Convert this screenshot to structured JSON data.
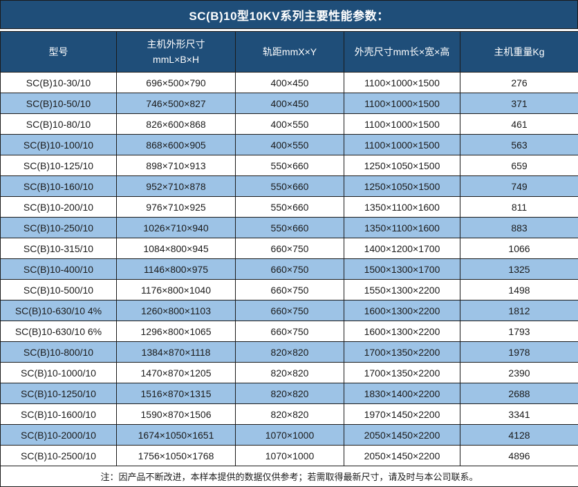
{
  "title": "SC(B)10型10KV系列主要性能参数：",
  "colors": {
    "title_bg": "#1F4E79",
    "header_bg": "#1F4E79",
    "row_alt_bg": "#9DC3E6",
    "row_bg": "#FFFFFF",
    "border": "#1A1A1A",
    "header_text": "#FFFFFF",
    "body_text": "#1A1A1A"
  },
  "table": {
    "headers": [
      "型号",
      "主机外形尺寸\nmmL×B×H",
      "轨距mmX×Y",
      "外壳尺寸mm长×宽×高",
      "主机重量Kg"
    ],
    "rows": [
      [
        "SC(B)10-30/10",
        "696×500×790",
        "400×450",
        "1100×1000×1500",
        "276"
      ],
      [
        "SC(B)10-50/10",
        "746×500×827",
        "400×450",
        "1100×1000×1500",
        "371"
      ],
      [
        "SC(B)10-80/10",
        "826×600×868",
        "400×550",
        "1100×1000×1500",
        "461"
      ],
      [
        "SC(B)10-100/10",
        "868×600×905",
        "400×550",
        "1100×1000×1500",
        "563"
      ],
      [
        "SC(B)10-125/10",
        "898×710×913",
        "550×660",
        "1250×1050×1500",
        "659"
      ],
      [
        "SC(B)10-160/10",
        "952×710×878",
        "550×660",
        "1250×1050×1500",
        "749"
      ],
      [
        "SC(B)10-200/10",
        "976×710×925",
        "550×660",
        "1350×1100×1600",
        "811"
      ],
      [
        "SC(B)10-250/10",
        "1026×710×940",
        "550×660",
        "1350×1100×1600",
        "883"
      ],
      [
        "SC(B)10-315/10",
        "1084×800×945",
        "660×750",
        "1400×1200×1700",
        "1066"
      ],
      [
        "SC(B)10-400/10",
        "1146×800×975",
        "660×750",
        "1500×1300×1700",
        "1325"
      ],
      [
        "SC(B)10-500/10",
        "1176×800×1040",
        "660×750",
        "1550×1300×2200",
        "1498"
      ],
      [
        "SC(B)10-630/10 4%",
        "1260×800×1103",
        "660×750",
        "1600×1300×2200",
        "1812"
      ],
      [
        "SC(B)10-630/10 6%",
        "1296×800×1065",
        "660×750",
        "1600×1300×2200",
        "1793"
      ],
      [
        "SC(B)10-800/10",
        "1384×870×1118",
        "820×820",
        "1700×1350×2200",
        "1978"
      ],
      [
        "SC(B)10-1000/10",
        "1470×870×1205",
        "820×820",
        "1700×1350×2200",
        "2390"
      ],
      [
        "SC(B)10-1250/10",
        "1516×870×1315",
        "820×820",
        "1830×1400×2200",
        "2688"
      ],
      [
        "SC(B)10-1600/10",
        "1590×870×1506",
        "820×820",
        "1970×1450×2200",
        "3341"
      ],
      [
        "SC(B)10-2000/10",
        "1674×1050×1651",
        "1070×1000",
        "2050×1450×2200",
        "4128"
      ],
      [
        "SC(B)10-2500/10",
        "1756×1050×1768",
        "1070×1000",
        "2050×1450×2200",
        "4896"
      ]
    ],
    "note": "注：因产品不断改进，本样本提供的数据仅供参考；若需取得最新尺寸，请及时与本公司联系。"
  }
}
